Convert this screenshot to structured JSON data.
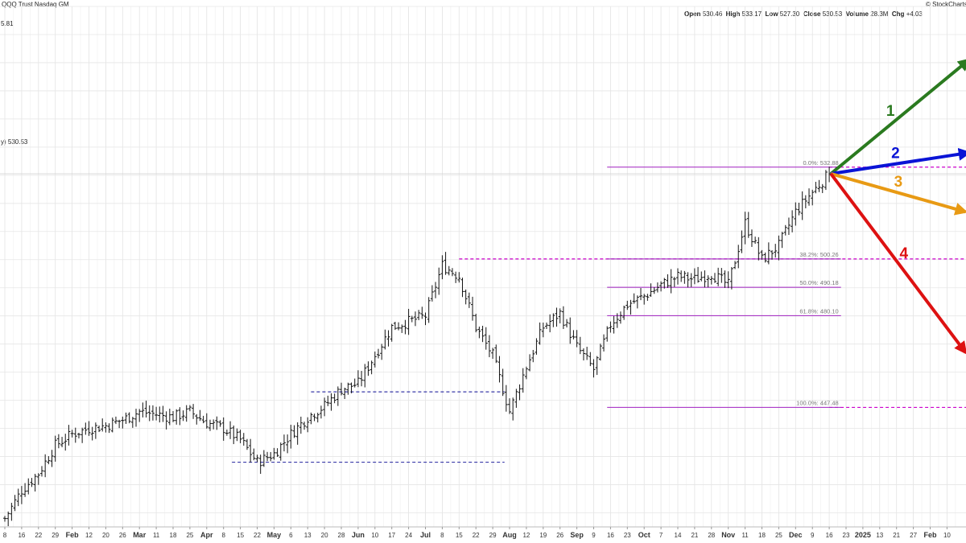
{
  "header": {
    "title": "QQQ Trust Nasdaq GM",
    "watermark": "© StockCharts",
    "ohlc": [
      {
        "label": "Open",
        "value": "530.46"
      },
      {
        "label": "High",
        "value": "533.17"
      },
      {
        "label": "Low",
        "value": "527.30"
      },
      {
        "label": "Close",
        "value": "530.53"
      },
      {
        "label": "Volume",
        "value": "28.3M"
      },
      {
        "label": "Chg",
        "value": "+4.03"
      }
    ],
    "top_left_value": "5.81",
    "price_label": "y) 530.53"
  },
  "chart_data": {
    "type": "ohlc-bar",
    "ylim": [
      405,
      590
    ],
    "grid": true,
    "last_close": 530.53,
    "x_ticks": [
      {
        "label": "8",
        "bold": false
      },
      {
        "label": "16",
        "bold": false
      },
      {
        "label": "22",
        "bold": false
      },
      {
        "label": "29",
        "bold": false
      },
      {
        "label": "Feb",
        "bold": true
      },
      {
        "label": "12",
        "bold": false
      },
      {
        "label": "20",
        "bold": false
      },
      {
        "label": "26",
        "bold": false
      },
      {
        "label": "Mar",
        "bold": true
      },
      {
        "label": "11",
        "bold": false
      },
      {
        "label": "18",
        "bold": false
      },
      {
        "label": "25",
        "bold": false
      },
      {
        "label": "Apr",
        "bold": true
      },
      {
        "label": "8",
        "bold": false
      },
      {
        "label": "15",
        "bold": false
      },
      {
        "label": "22",
        "bold": false
      },
      {
        "label": "May",
        "bold": true
      },
      {
        "label": "6",
        "bold": false
      },
      {
        "label": "13",
        "bold": false
      },
      {
        "label": "20",
        "bold": false
      },
      {
        "label": "28",
        "bold": false
      },
      {
        "label": "Jun",
        "bold": true
      },
      {
        "label": "10",
        "bold": false
      },
      {
        "label": "17",
        "bold": false
      },
      {
        "label": "24",
        "bold": false
      },
      {
        "label": "Jul",
        "bold": true
      },
      {
        "label": "8",
        "bold": false
      },
      {
        "label": "15",
        "bold": false
      },
      {
        "label": "22",
        "bold": false
      },
      {
        "label": "29",
        "bold": false
      },
      {
        "label": "Aug",
        "bold": true
      },
      {
        "label": "12",
        "bold": false
      },
      {
        "label": "19",
        "bold": false
      },
      {
        "label": "26",
        "bold": false
      },
      {
        "label": "Sep",
        "bold": true
      },
      {
        "label": "9",
        "bold": false
      },
      {
        "label": "16",
        "bold": false
      },
      {
        "label": "23",
        "bold": false
      },
      {
        "label": "Oct",
        "bold": true
      },
      {
        "label": "7",
        "bold": false
      },
      {
        "label": "14",
        "bold": false
      },
      {
        "label": "21",
        "bold": false
      },
      {
        "label": "28",
        "bold": false
      },
      {
        "label": "Nov",
        "bold": true
      },
      {
        "label": "11",
        "bold": false
      },
      {
        "label": "18",
        "bold": false
      },
      {
        "label": "25",
        "bold": false
      },
      {
        "label": "Dec",
        "bold": true
      },
      {
        "label": "9",
        "bold": false
      },
      {
        "label": "16",
        "bold": false
      },
      {
        "label": "23",
        "bold": false
      },
      {
        "label": "2025",
        "bold": true
      },
      {
        "label": "13",
        "bold": false
      },
      {
        "label": "21",
        "bold": false
      },
      {
        "label": "27",
        "bold": false
      },
      {
        "label": "Feb",
        "bold": true
      },
      {
        "label": "10",
        "bold": false
      }
    ],
    "price_path": [
      {
        "tick": 0,
        "price": 408
      },
      {
        "tick": 1,
        "price": 418
      },
      {
        "tick": 2,
        "price": 424
      },
      {
        "tick": 3,
        "price": 434
      },
      {
        "tick": 4,
        "price": 438
      },
      {
        "tick": 5,
        "price": 440
      },
      {
        "tick": 6,
        "price": 441
      },
      {
        "tick": 7,
        "price": 443
      },
      {
        "tick": 8,
        "price": 446
      },
      {
        "tick": 9,
        "price": 445
      },
      {
        "tick": 10,
        "price": 444
      },
      {
        "tick": 11,
        "price": 446
      },
      {
        "tick": 12,
        "price": 442
      },
      {
        "tick": 13,
        "price": 440
      },
      {
        "tick": 14,
        "price": 436
      },
      {
        "tick": 15,
        "price": 428
      },
      {
        "tick": 16,
        "price": 431
      },
      {
        "tick": 17,
        "price": 438
      },
      {
        "tick": 18,
        "price": 444
      },
      {
        "tick": 19,
        "price": 448
      },
      {
        "tick": 20,
        "price": 454
      },
      {
        "tick": 21,
        "price": 456
      },
      {
        "tick": 22,
        "price": 466
      },
      {
        "tick": 23,
        "price": 476
      },
      {
        "tick": 24,
        "price": 478
      },
      {
        "tick": 25,
        "price": 480
      },
      {
        "tick": 26,
        "price": 498
      },
      {
        "tick": 27,
        "price": 494
      },
      {
        "tick": 28,
        "price": 476
      },
      {
        "tick": 29,
        "price": 466
      },
      {
        "tick": 30,
        "price": 446
      },
      {
        "tick": 31,
        "price": 462
      },
      {
        "tick": 32,
        "price": 476
      },
      {
        "tick": 33,
        "price": 481
      },
      {
        "tick": 34,
        "price": 469
      },
      {
        "tick": 35,
        "price": 461
      },
      {
        "tick": 36,
        "price": 477
      },
      {
        "tick": 37,
        "price": 484
      },
      {
        "tick": 38,
        "price": 487
      },
      {
        "tick": 39,
        "price": 491
      },
      {
        "tick": 40,
        "price": 494
      },
      {
        "tick": 41,
        "price": 493
      },
      {
        "tick": 42,
        "price": 495
      },
      {
        "tick": 43,
        "price": 491
      },
      {
        "tick": 44,
        "price": 513
      },
      {
        "tick": 45,
        "price": 500
      },
      {
        "tick": 46,
        "price": 505
      },
      {
        "tick": 47,
        "price": 517
      },
      {
        "tick": 48,
        "price": 524
      },
      {
        "tick": 49,
        "price": 530.53
      }
    ],
    "support_lines": [
      {
        "price": 500.26,
        "from_tick": 27.0,
        "to_tick": 57.5,
        "color": "#cc00cc"
      },
      {
        "price": 532.88,
        "from_tick": 49.0,
        "to_tick": 57.5,
        "color": "#cc00cc"
      },
      {
        "price": 447.48,
        "from_tick": 49.0,
        "to_tick": 57.5,
        "color": "#cc00cc"
      },
      {
        "price": 453,
        "from_tick": 18.2,
        "to_tick": 29.7,
        "color": "#3a3aa8"
      },
      {
        "price": 428,
        "from_tick": 13.5,
        "to_tick": 29.7,
        "color": "#3a3aa8"
      }
    ],
    "fibonacci": {
      "from_tick": 35.8,
      "to_tick": 49.7,
      "color": "#a020c0",
      "levels": [
        {
          "label": "0.0%: 532.88",
          "price": 532.88
        },
        {
          "label": "38.2%: 500.26",
          "price": 500.26
        },
        {
          "label": "50.0%: 490.18",
          "price": 490.18
        },
        {
          "label": "61.8%: 480.10",
          "price": 480.1
        },
        {
          "label": "100.0%: 447.48",
          "price": 447.48
        }
      ]
    },
    "scenarios": [
      {
        "label": "1",
        "color": "#2a7a1f",
        "target_tick": 57.3,
        "target_price": 571
      },
      {
        "label": "2",
        "color": "#0a14d6",
        "target_tick": 57.3,
        "target_price": 538
      },
      {
        "label": "3",
        "color": "#e89a14",
        "target_tick": 57.1,
        "target_price": 517
      },
      {
        "label": "4",
        "color": "#dd1111",
        "target_tick": 57.1,
        "target_price": 467
      }
    ]
  }
}
